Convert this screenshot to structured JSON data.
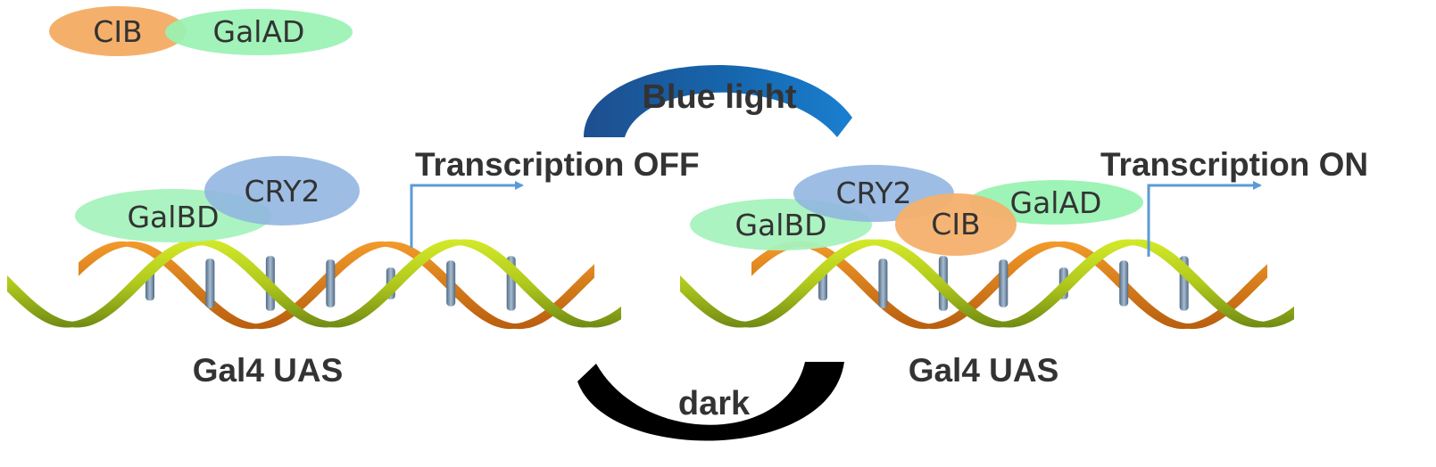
{
  "colors": {
    "cib": "#f4b06b",
    "galad": "#99f2b3",
    "galbd": "#a6f2bd",
    "cry2": "#8fb4e0",
    "arrow": "#5b9bd5",
    "blue_arc_dark": "#1e5aa0",
    "blue_arc_light": "#1a78c8",
    "dark_arc": "#000000",
    "helix_green": "#b5cf1d",
    "helix_orange": "#e6861c",
    "rung": "#7d93ab",
    "text": "#333333"
  },
  "legend": {
    "cib_label": "CIB",
    "galad_label": "GalAD"
  },
  "cycle": {
    "blue_light_label": "Blue light",
    "dark_label": "dark"
  },
  "left_state": {
    "galbd_label": "GalBD",
    "cry2_label": "CRY2",
    "transcription_label": "Transcription OFF",
    "uas_label": "Gal4 UAS"
  },
  "right_state": {
    "cry2_label": "CRY2",
    "galbd_label": "GalBD",
    "cib_label": "CIB",
    "galad_label": "GalAD",
    "transcription_label": "Transcription ON",
    "uas_label": "Gal4 UAS"
  }
}
